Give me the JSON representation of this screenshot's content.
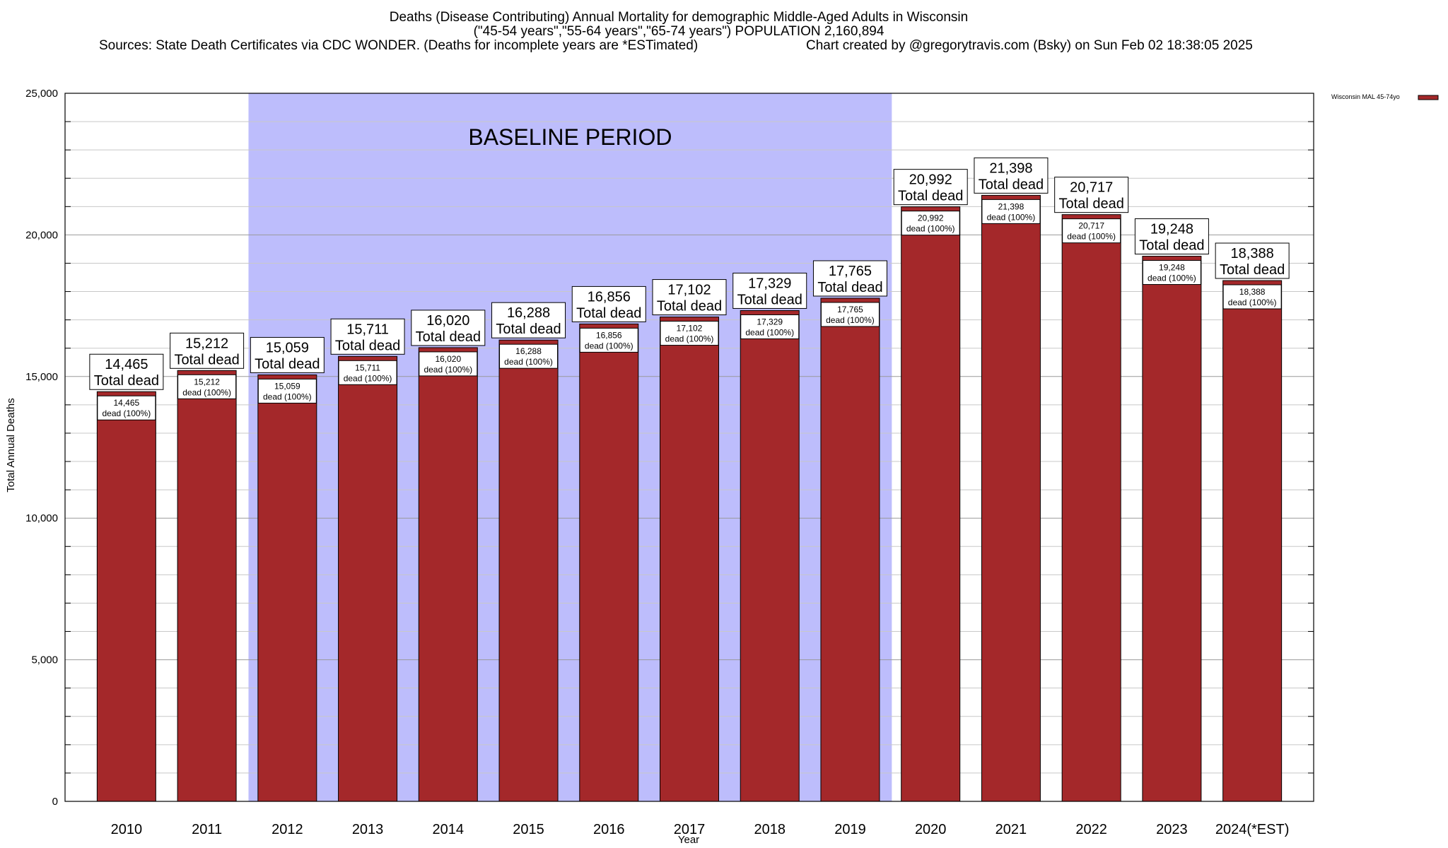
{
  "title": {
    "line1": "Deaths (Disease Contributing) Annual Mortality for demographic Middle-Aged Adults in Wisconsin",
    "line2": "(\"45-54 years\",\"55-64 years\",\"65-74 years\") POPULATION 2,160,894",
    "sources": "Sources: State Death Certificates via CDC WONDER. (Deaths for incomplete years are *ESTimated)",
    "credit": "Chart created by @gregorytravis.com (Bsky) on Sun Feb 02 18:38:05 2025"
  },
  "chart_data": {
    "type": "bar",
    "xlabel": "Year",
    "ylabel": "Total Annual Deaths",
    "ylim": [
      0,
      25000
    ],
    "yticks": [
      0,
      5000,
      10000,
      15000,
      20000,
      25000
    ],
    "ytick_labels": [
      "0",
      "5,000",
      "10,000",
      "15,000",
      "20,000",
      "25,000"
    ],
    "categories": [
      "2010",
      "2011",
      "2012",
      "2013",
      "2014",
      "2015",
      "2016",
      "2017",
      "2018",
      "2019",
      "2020",
      "2021",
      "2022",
      "2023",
      "2024(*EST)"
    ],
    "series": [
      {
        "name": "Wisconsin MAL 45-74yo",
        "color": "#a4282a",
        "values": [
          14465,
          15212,
          15059,
          15711,
          16020,
          16288,
          16856,
          17102,
          17329,
          17765,
          20992,
          21398,
          20717,
          19248,
          18388
        ]
      }
    ],
    "value_labels": [
      "14,465",
      "15,212",
      "15,059",
      "15,711",
      "16,020",
      "16,288",
      "16,856",
      "17,102",
      "17,329",
      "17,765",
      "20,992",
      "21,398",
      "20,717",
      "19,248",
      "18,388"
    ],
    "total_label_suffix": "Total dead",
    "inner_label_suffix": "dead (100%)",
    "baseline": {
      "label": "BASELINE PERIOD",
      "from": "2012",
      "to": "2019",
      "color": "#bdbdfc"
    },
    "grid": true,
    "legend": "top-right"
  }
}
